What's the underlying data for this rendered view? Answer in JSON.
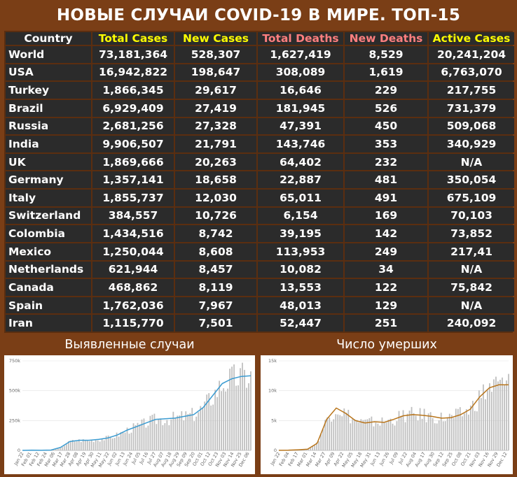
{
  "title": "НОВЫЕ СЛУЧАИ COVID-19 В МИРЕ. ТОП-15",
  "colors": {
    "background": "#7a3e16",
    "table_cell": "#2b2b2b",
    "header_yellow": "#ffff00",
    "header_red": "#ff7f7f",
    "cases_line": "#3a9bd1",
    "deaths_line": "#b8741a",
    "bars": "#bfbfbf"
  },
  "table": {
    "headers": [
      {
        "label": "Country",
        "color": "#ffffff"
      },
      {
        "label": "Total Cases",
        "color": "#ffff00"
      },
      {
        "label": "New Cases",
        "color": "#ffff00"
      },
      {
        "label": "Total Deaths",
        "color": "#ff7f7f"
      },
      {
        "label": "New Deaths",
        "color": "#ff7f7f"
      },
      {
        "label": "Active Cases",
        "color": "#ffff00"
      }
    ],
    "rows": [
      [
        "World",
        "73,181,364",
        "528,307",
        "1,627,419",
        "8,529",
        "20,241,204"
      ],
      [
        "USA",
        "16,942,822",
        "198,647",
        "308,089",
        "1,619",
        "6,763,070"
      ],
      [
        "Turkey",
        "1,866,345",
        "29,617",
        "16,646",
        "229",
        "217,755"
      ],
      [
        "Brazil",
        "6,929,409",
        "27,419",
        "181,945",
        "526",
        "731,379"
      ],
      [
        "Russia",
        "2,681,256",
        "27,328",
        "47,391",
        "450",
        "509,068"
      ],
      [
        "India",
        "9,906,507",
        "21,791",
        "143,746",
        "353",
        "340,929"
      ],
      [
        "UK",
        "1,869,666",
        "20,263",
        "64,402",
        "232",
        "N/A"
      ],
      [
        "Germany",
        "1,357,141",
        "18,658",
        "22,887",
        "481",
        "350,054"
      ],
      [
        "Italy",
        "1,855,737",
        "12,030",
        "65,011",
        "491",
        "675,109"
      ],
      [
        "Switzerland",
        "384,557",
        "10,726",
        "6,154",
        "169",
        "70,103"
      ],
      [
        "Colombia",
        "1,434,516",
        "8,742",
        "39,195",
        "142",
        "73,852"
      ],
      [
        "Mexico",
        "1,250,044",
        "8,608",
        "113,953",
        "249",
        "217,41"
      ],
      [
        "Netherlands",
        "621,944",
        "8,457",
        "10,082",
        "34",
        "N/A"
      ],
      [
        "Canada",
        "468,862",
        "8,119",
        "13,553",
        "122",
        "75,842"
      ],
      [
        "Spain",
        "1,762,036",
        "7,967",
        "48,013",
        "129",
        "N/A"
      ],
      [
        "Iran",
        "1,115,770",
        "7,501",
        "52,447",
        "251",
        "240,092"
      ]
    ]
  },
  "chart_data": [
    {
      "type": "bar",
      "title": "Выявленные случаи",
      "xlabel": "",
      "ylabel": "",
      "ylim": [
        0,
        750000
      ],
      "yticks": [
        "0",
        "250k",
        "500k",
        "750k"
      ],
      "ytick_values": [
        0,
        250000,
        500000,
        750000
      ],
      "x_tick_labels": [
        "Jan 22",
        "Feb 01",
        "Feb 12",
        "Feb 24",
        "Mar 06",
        "Mar 17",
        "Mar 28",
        "Apr 08",
        "Apr 19",
        "Apr 30",
        "May 11",
        "May 22",
        "Jun 02",
        "Jun 13",
        "Jun 24",
        "Jul 05",
        "Jul 16",
        "Jul 27",
        "Aug 07",
        "Aug 18",
        "Aug 29",
        "Sep 09",
        "Sep 20",
        "Oct 01",
        "Oct 12",
        "Oct 23",
        "Nov 03",
        "Nov 14",
        "Nov 25",
        "Dec 06"
      ],
      "grid": true,
      "series": [
        {
          "kind": "bars",
          "color": "#bfbfbf"
        },
        {
          "kind": "line",
          "color": "#3a9bd1"
        }
      ],
      "x": [
        "Jan 22",
        "Feb 05",
        "Feb 19",
        "Mar 04",
        "Mar 18",
        "Apr 01",
        "Apr 15",
        "Apr 29",
        "May 13",
        "May 27",
        "Jun 10",
        "Jun 24",
        "Jul 08",
        "Jul 22",
        "Aug 05",
        "Aug 19",
        "Sep 02",
        "Sep 16",
        "Sep 30",
        "Oct 14",
        "Oct 28",
        "Nov 11",
        "Nov 25",
        "Dec 09",
        "Dec 15"
      ],
      "values": [
        500,
        2500,
        1500,
        3000,
        25000,
        75000,
        85000,
        85000,
        92000,
        105000,
        130000,
        170000,
        200000,
        230000,
        260000,
        265000,
        270000,
        285000,
        300000,
        360000,
        460000,
        560000,
        600000,
        620000,
        625000
      ]
    },
    {
      "type": "bar",
      "title": "Число умерших",
      "xlabel": "",
      "ylabel": "",
      "ylim": [
        0,
        15000
      ],
      "yticks": [
        "0",
        "5k",
        "10k",
        "15k"
      ],
      "ytick_values": [
        0,
        5000,
        10000,
        15000
      ],
      "x_tick_labels": [
        "Jan 22",
        "Feb 04",
        "Feb 17",
        "Mar 01",
        "Mar 14",
        "Mar 27",
        "Apr 09",
        "Apr 22",
        "May 05",
        "May 18",
        "May 31",
        "Jun 13",
        "Jun 26",
        "Jul 09",
        "Jul 22",
        "Aug 04",
        "Aug 17",
        "Aug 30",
        "Sep 12",
        "Sep 25",
        "Oct 08",
        "Oct 21",
        "Nov 03",
        "Nov 16",
        "Nov 29",
        "Dec 12"
      ],
      "grid": true,
      "series": [
        {
          "kind": "bars",
          "color": "#bfbfbf"
        },
        {
          "kind": "line",
          "color": "#b8741a"
        }
      ],
      "x": [
        "Jan 22",
        "Feb 05",
        "Feb 19",
        "Mar 04",
        "Mar 18",
        "Apr 01",
        "Apr 15",
        "Apr 29",
        "May 13",
        "May 27",
        "Jun 10",
        "Jun 24",
        "Jul 08",
        "Jul 22",
        "Aug 05",
        "Aug 19",
        "Sep 02",
        "Sep 16",
        "Sep 30",
        "Oct 14",
        "Oct 28",
        "Nov 11",
        "Nov 25",
        "Dec 09",
        "Dec 15"
      ],
      "values": [
        20,
        50,
        100,
        200,
        1200,
        5200,
        7100,
        6200,
        5000,
        4600,
        4800,
        4700,
        5200,
        5800,
        6000,
        5900,
        5700,
        5400,
        5500,
        6000,
        6900,
        9000,
        10500,
        11000,
        11000
      ]
    }
  ]
}
